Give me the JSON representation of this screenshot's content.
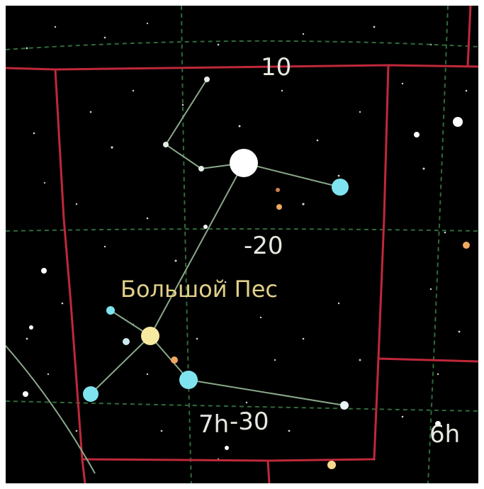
{
  "map": {
    "constellation_name": "Большой Пес",
    "dec_labels": [
      "10",
      "-20",
      "-30"
    ],
    "ra_labels": [
      "7h",
      "6h"
    ]
  },
  "colors": {
    "background": "#000000",
    "boundary": "#c0283a",
    "grid": "#2f6a3a",
    "figure": "#8aa88a",
    "label_grid": "#e8e8e0",
    "label_constellation": "#e0cf8a",
    "star_white": "#ffffff",
    "star_blue": "#7fe3ef",
    "star_yellow": "#f6eaa0",
    "star_orange": "#f0a860"
  }
}
